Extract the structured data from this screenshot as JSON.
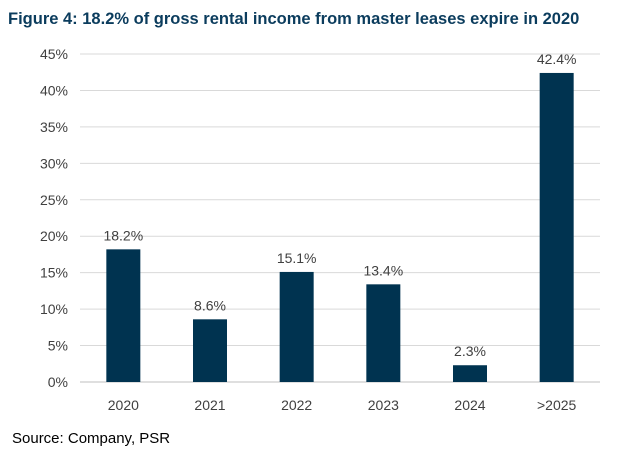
{
  "title": "Figure 4: 18.2% of gross rental income from master leases expire in 2020",
  "source": "Source: Company, PSR",
  "colors": {
    "bar": "#003350",
    "title": "#0b3c5d",
    "grid": "#d9d9d9",
    "text": "#404040"
  },
  "chart_data": {
    "type": "bar",
    "title": "Figure 4: 18.2% of gross rental income from master leases expire in 2020",
    "xlabel": "",
    "ylabel": "",
    "categories": [
      "2020",
      "2021",
      "2022",
      "2023",
      "2024",
      ">2025"
    ],
    "values": [
      18.2,
      8.6,
      15.1,
      13.4,
      2.3,
      42.4
    ],
    "data_labels": [
      "18.2%",
      "8.6%",
      "15.1%",
      "13.4%",
      "2.3%",
      "42.4%"
    ],
    "ylim": [
      0,
      45
    ],
    "yticks": [
      "0%",
      "5%",
      "10%",
      "15%",
      "20%",
      "25%",
      "30%",
      "35%",
      "40%",
      "45%"
    ],
    "grid": true,
    "legend": "none"
  }
}
